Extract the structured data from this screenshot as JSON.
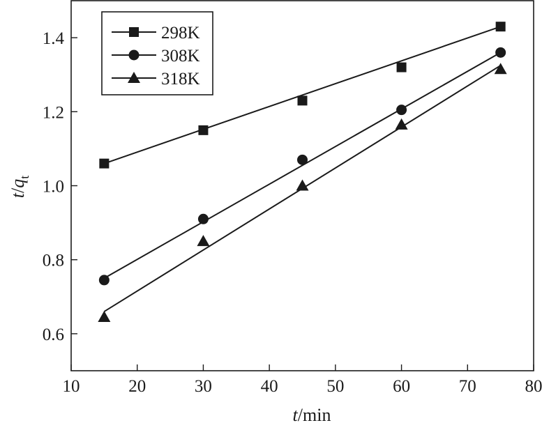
{
  "chart_data": {
    "type": "line",
    "xlabel": {
      "italic": "t",
      "rest": "/min"
    },
    "ylabel": {
      "italic": "t",
      "slash": "/",
      "q": "q",
      "sub": "t"
    },
    "xlim": [
      10,
      80
    ],
    "ylim": [
      0.5,
      1.5
    ],
    "x_ticks": [
      10,
      20,
      30,
      40,
      50,
      60,
      70,
      80
    ],
    "y_ticks": [
      0.6,
      0.8,
      1.0,
      1.2,
      1.4
    ],
    "x_tick_labels": [
      "10",
      "20",
      "30",
      "40",
      "50",
      "60",
      "70",
      "80"
    ],
    "y_tick_labels": [
      "0.6",
      "0.8",
      "1.0",
      "1.2",
      "1.4"
    ],
    "grid": false,
    "legend_position": "top-left",
    "x": [
      15,
      30,
      45,
      60,
      75
    ],
    "series": [
      {
        "name": "298K",
        "marker": "square",
        "values": [
          1.06,
          1.15,
          1.23,
          1.32,
          1.43
        ],
        "fit": [
          1.06,
          1.43
        ]
      },
      {
        "name": "308K",
        "marker": "circle",
        "values": [
          0.745,
          0.91,
          1.07,
          1.205,
          1.36
        ],
        "fit": [
          0.75,
          1.36
        ]
      },
      {
        "name": "318K",
        "marker": "triangle",
        "values": [
          0.645,
          0.85,
          1.0,
          1.165,
          1.315
        ],
        "fit": [
          0.66,
          1.325
        ]
      }
    ],
    "colors": {
      "ink": "#1a1a1a",
      "background": "#ffffff"
    }
  }
}
